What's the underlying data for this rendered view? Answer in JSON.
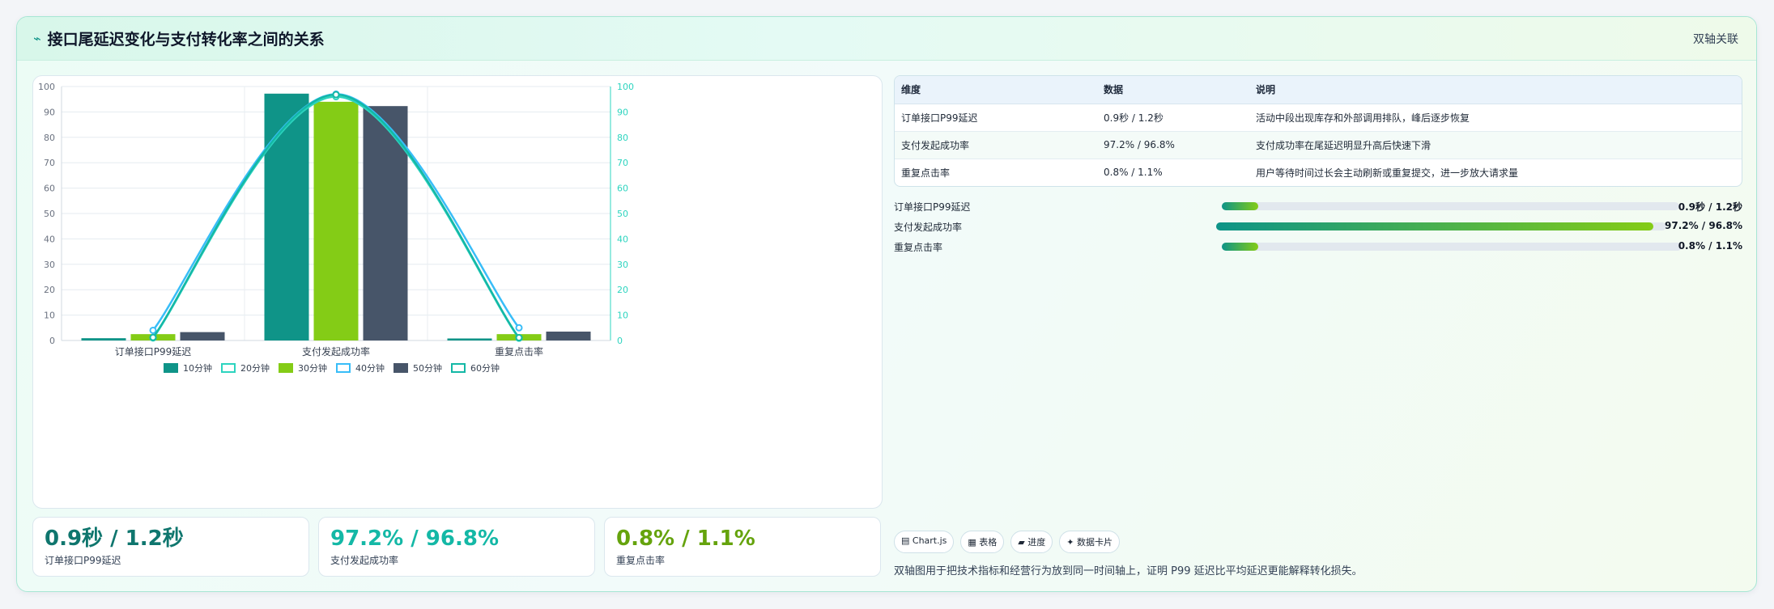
{
  "header": {
    "title": "接口尾延迟变化与支付转化率之间的关系",
    "badge": "双轴关联"
  },
  "chart_data": {
    "type": "bar",
    "categories": [
      "订单接口P99延迟",
      "支付发起成功率",
      "重复点击率"
    ],
    "series": [
      {
        "name": "10分钟",
        "kind": "bar",
        "color": "#0f9488",
        "values": [
          0.9,
          97.2,
          0.8
        ]
      },
      {
        "name": "20分钟",
        "kind": "line",
        "color": "#2dd4bf",
        "values": [
          1.0,
          96.0,
          0.9
        ]
      },
      {
        "name": "30分钟",
        "kind": "bar",
        "color": "#84cc16",
        "values": [
          2.5,
          94.0,
          2.5
        ]
      },
      {
        "name": "40分钟",
        "kind": "line",
        "color": "#38bdf8",
        "values": [
          4.0,
          97.0,
          5.0
        ]
      },
      {
        "name": "50分钟",
        "kind": "bar",
        "color": "#475569",
        "values": [
          3.3,
          92.3,
          3.5
        ]
      },
      {
        "name": "60分钟",
        "kind": "line",
        "color": "#14b8a6",
        "values": [
          1.2,
          96.8,
          1.1
        ]
      }
    ],
    "y_ticks": [
      0,
      10,
      20,
      30,
      40,
      50,
      60,
      70,
      80,
      90,
      100
    ],
    "ylim": [
      0,
      100
    ],
    "y2lim": [
      0,
      100
    ],
    "grid": true,
    "legend": "bottom"
  },
  "table": {
    "headers": [
      "维度",
      "数据",
      "说明"
    ],
    "rows": [
      [
        "订单接口P99延迟",
        "0.9秒 / 1.2秒",
        "活动中段出现库存和外部调用排队，峰后逐步恢复"
      ],
      [
        "支付发起成功率",
        "97.2% / 96.8%",
        "支付成功率在尾延迟明显升高后快速下滑"
      ],
      [
        "重复点击率",
        "0.8% / 1.1%",
        "用户等待时间过长会主动刷新或重复提交，进一步放大请求量"
      ]
    ]
  },
  "progress": [
    {
      "label": "订单接口P99延迟",
      "value": "0.9秒 / 1.2秒",
      "fraction": 0.08
    },
    {
      "label": "支付发起成功率",
      "value": "97.2% / 96.8%",
      "fraction": 0.972
    },
    {
      "label": "重复点击率",
      "value": "0.8% / 1.1%",
      "fraction": 0.08
    }
  ],
  "stats": [
    {
      "value": "0.9秒 / 1.2秒",
      "label": "订单接口P99延迟",
      "color": "#0f766e"
    },
    {
      "value": "97.2% / 96.8%",
      "label": "支付发起成功率",
      "color": "#14b8a6"
    },
    {
      "value": "0.8% / 1.1%",
      "label": "重复点击率",
      "color": "#65a30d"
    }
  ],
  "chips": [
    "▤ Chart.js",
    "▦ 表格",
    "▰ 进度",
    "✦ 数据卡片"
  ],
  "footnote": "双轴图用于把技术指标和经营行为放到同一时间轴上，证明 P99 延迟比平均延迟更能解释转化损失。",
  "colors": {
    "accent": "#0f9488",
    "lime": "#84cc16",
    "slate": "#475569"
  }
}
